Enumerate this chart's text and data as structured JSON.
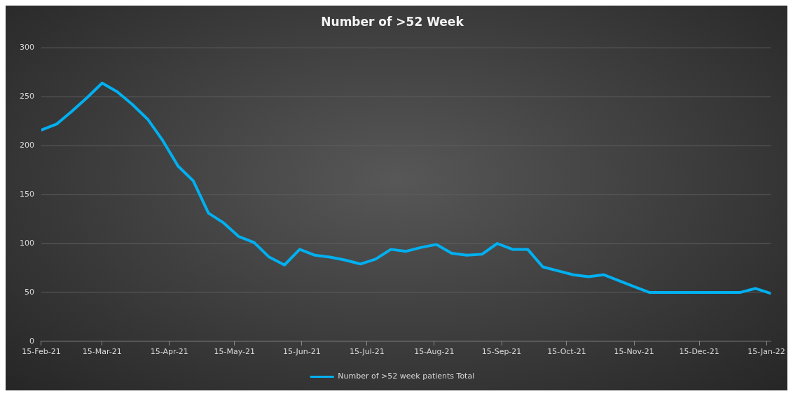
{
  "chart_data": {
    "type": "line",
    "title": "Number of >52 Week",
    "x": [
      "2021-02-15",
      "2021-02-22",
      "2021-03-01",
      "2021-03-08",
      "2021-03-15",
      "2021-03-22",
      "2021-03-29",
      "2021-04-05",
      "2021-04-12",
      "2021-04-19",
      "2021-04-26",
      "2021-05-03",
      "2021-05-10",
      "2021-05-17",
      "2021-05-24",
      "2021-05-31",
      "2021-06-07",
      "2021-06-14",
      "2021-06-21",
      "2021-06-28",
      "2021-07-05",
      "2021-07-12",
      "2021-07-19",
      "2021-07-26",
      "2021-08-02",
      "2021-08-09",
      "2021-08-16",
      "2021-08-23",
      "2021-08-30",
      "2021-09-06",
      "2021-09-13",
      "2021-09-20",
      "2021-09-27",
      "2021-10-04",
      "2021-10-11",
      "2021-10-18",
      "2021-10-25",
      "2021-11-01",
      "2021-11-08",
      "2021-11-15",
      "2021-11-22",
      "2021-11-29",
      "2021-12-06",
      "2021-12-13",
      "2021-12-20",
      "2021-12-27",
      "2022-01-03",
      "2022-01-10",
      "2022-01-17"
    ],
    "series": [
      {
        "name": "Number of >52 week patients Total",
        "color": "#00b0f0",
        "values": [
          216,
          222,
          235,
          249,
          264,
          255,
          242,
          227,
          205,
          179,
          164,
          131,
          121,
          107,
          101,
          86,
          78,
          94,
          88,
          86,
          83,
          79,
          84,
          94,
          92,
          96,
          99,
          90,
          88,
          89,
          100,
          94,
          94,
          76,
          72,
          68,
          66,
          68,
          62,
          56,
          50,
          50,
          50,
          50,
          50,
          50,
          50,
          54,
          49
        ]
      }
    ],
    "xlim": [
      "2021-02-15",
      "2022-01-17"
    ],
    "xticks": [
      {
        "value": "2021-02-15",
        "label": "15-Feb-21"
      },
      {
        "value": "2021-03-15",
        "label": "15-Mar-21"
      },
      {
        "value": "2021-04-15",
        "label": "15-Apr-21"
      },
      {
        "value": "2021-05-15",
        "label": "15-May-21"
      },
      {
        "value": "2021-06-15",
        "label": "15-Jun-21"
      },
      {
        "value": "2021-07-15",
        "label": "15-Jul-21"
      },
      {
        "value": "2021-08-15",
        "label": "15-Aug-21"
      },
      {
        "value": "2021-09-15",
        "label": "15-Sep-21"
      },
      {
        "value": "2021-10-15",
        "label": "15-Oct-21"
      },
      {
        "value": "2021-11-15",
        "label": "15-Nov-21"
      },
      {
        "value": "2021-12-15",
        "label": "15-Dec-21"
      },
      {
        "value": "2022-01-15",
        "label": "15-Jan-22"
      }
    ],
    "ylim": [
      0,
      300
    ],
    "yticks": [
      0,
      50,
      100,
      150,
      200,
      250,
      300
    ],
    "grid": "y",
    "legend": "bottom",
    "marker": "none",
    "line_style": "solid"
  }
}
